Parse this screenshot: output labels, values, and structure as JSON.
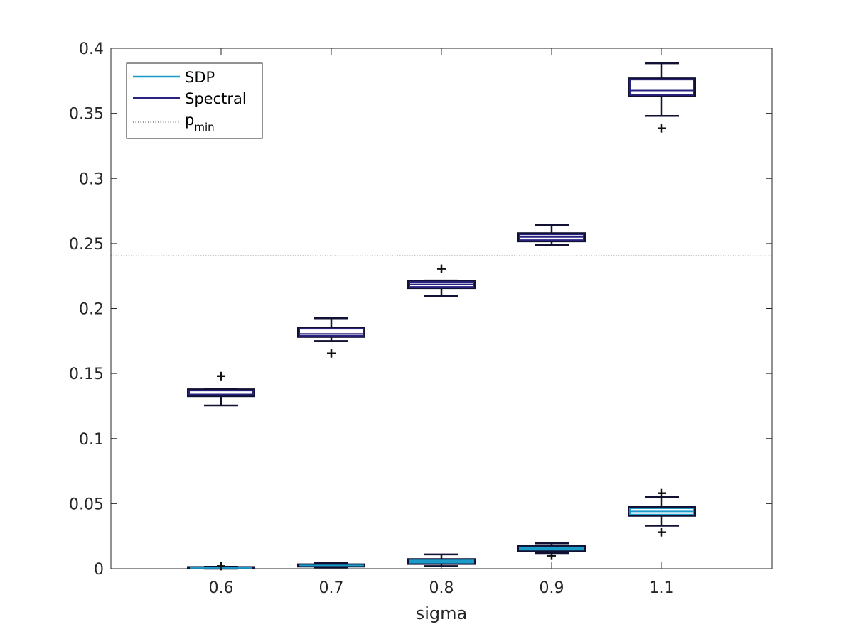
{
  "chart_data": {
    "type": "box",
    "xlabel": "sigma",
    "ylabel": "",
    "categories": [
      "0.6",
      "0.7",
      "0.8",
      "0.9",
      "1.1"
    ],
    "ylim": [
      0,
      0.4
    ],
    "yticks": [
      "0",
      "0.05",
      "0.1",
      "0.15",
      "0.2",
      "0.25",
      "0.3",
      "0.35",
      "0.4"
    ],
    "legend": {
      "placement": "top-left",
      "entries": [
        {
          "label": "SDP",
          "color": "#1a9bc9",
          "style": "solid"
        },
        {
          "label": "Spectral",
          "color": "#2a2280",
          "style": "solid"
        },
        {
          "label": "p",
          "subscript": "min",
          "color": "#333333",
          "style": "dotted"
        }
      ]
    },
    "reference_line": {
      "name": "p_min",
      "y": 0.2405
    },
    "series": [
      {
        "name": "SDP",
        "color": "#1a9bc9",
        "boxes": [
          {
            "whisker_low": 0.0,
            "q1": 0.0003,
            "median": 0.0006,
            "q3": 0.001,
            "whisker_high": 0.0015,
            "outliers": [
              0.002
            ]
          },
          {
            "whisker_low": 0.001,
            "q1": 0.0015,
            "median": 0.0025,
            "q3": 0.0035,
            "whisker_high": 0.0045,
            "outliers": []
          },
          {
            "whisker_low": 0.002,
            "q1": 0.0035,
            "median": 0.0055,
            "q3": 0.0075,
            "whisker_high": 0.011,
            "outliers": []
          },
          {
            "whisker_low": 0.012,
            "q1": 0.0135,
            "median": 0.0155,
            "q3": 0.0175,
            "whisker_high": 0.0195,
            "outliers": [
              0.01
            ]
          },
          {
            "whisker_low": 0.033,
            "q1": 0.0405,
            "median": 0.044,
            "q3": 0.0475,
            "whisker_high": 0.055,
            "outliers": [
              0.058,
              0.028
            ]
          }
        ]
      },
      {
        "name": "Spectral",
        "color": "#2a2280",
        "boxes": [
          {
            "whisker_low": 0.1255,
            "q1": 0.1325,
            "median": 0.134,
            "q3": 0.138,
            "whisker_high": 0.138,
            "outliers": [
              0.148
            ]
          },
          {
            "whisker_low": 0.175,
            "q1": 0.178,
            "median": 0.1805,
            "q3": 0.1855,
            "whisker_high": 0.1925,
            "outliers": [
              0.1655
            ]
          },
          {
            "whisker_low": 0.2095,
            "q1": 0.2155,
            "median": 0.2185,
            "q3": 0.2215,
            "whisker_high": 0.2215,
            "outliers": [
              0.2305
            ]
          },
          {
            "whisker_low": 0.249,
            "q1": 0.2515,
            "median": 0.255,
            "q3": 0.258,
            "whisker_high": 0.264,
            "outliers": []
          },
          {
            "whisker_low": 0.348,
            "q1": 0.363,
            "median": 0.3675,
            "q3": 0.377,
            "whisker_high": 0.3885,
            "outliers": [
              0.3385
            ]
          }
        ]
      }
    ]
  }
}
